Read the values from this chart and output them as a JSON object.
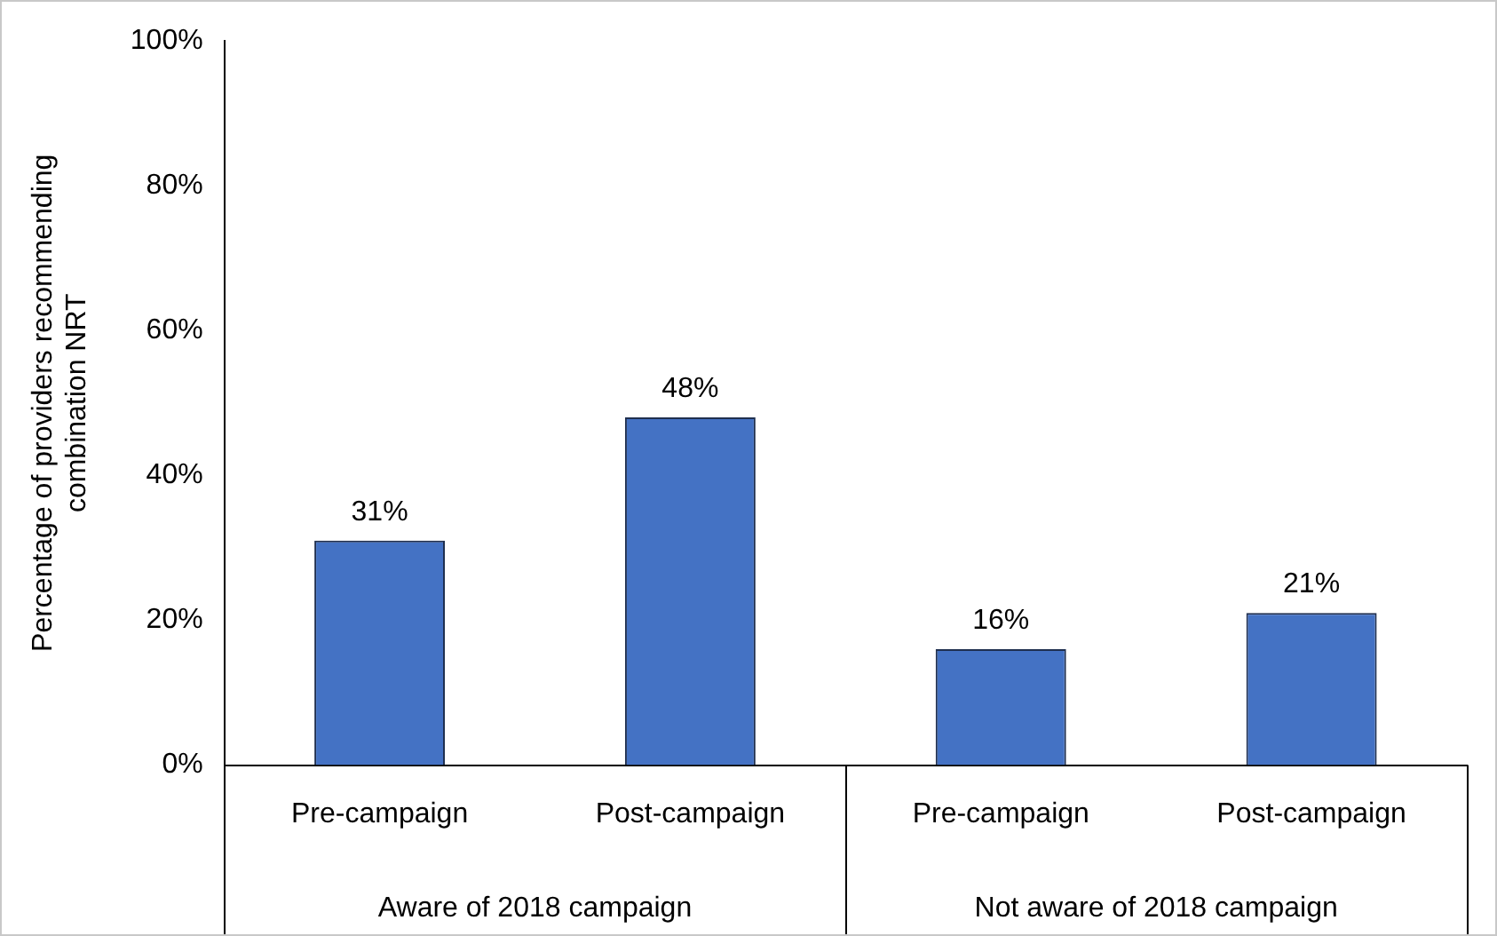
{
  "chart_data": {
    "type": "bar",
    "ylabel": "Percentage of providers recommending combination NRT",
    "categories": [
      "Pre-campaign",
      "Post-campaign",
      "Pre-campaign",
      "Post-campaign"
    ],
    "values": [
      31,
      48,
      16,
      21
    ],
    "color": "#4472c4",
    "data_labels": true,
    "value_labels": [
      "31%",
      "48%",
      "16%",
      "21%"
    ],
    "ylim": [
      0,
      100
    ],
    "yticks": [
      {
        "value": 0,
        "label": "0%"
      },
      {
        "value": 20,
        "label": "20%"
      },
      {
        "value": 40,
        "label": "40%"
      },
      {
        "value": 60,
        "label": "60%"
      },
      {
        "value": 80,
        "label": "80%"
      },
      {
        "value": 100,
        "label": "100%"
      }
    ],
    "grid": false,
    "legend": false,
    "annotations": [
      "Aware of 2018 campaign",
      "Not aware of 2018 campaign"
    ]
  }
}
